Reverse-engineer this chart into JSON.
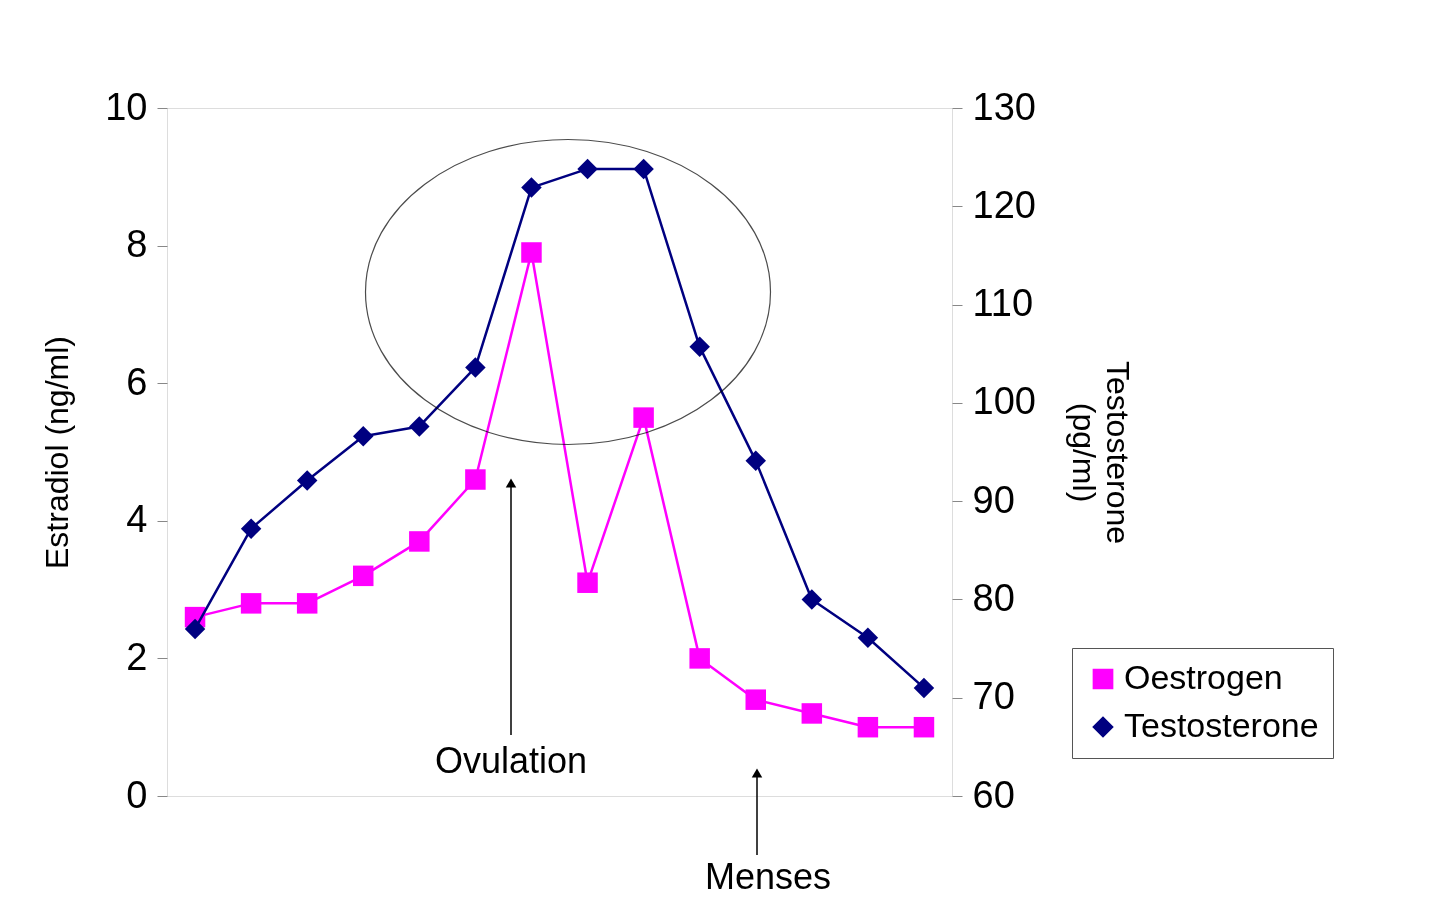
{
  "chart_data": {
    "type": "line",
    "categories": [
      null,
      null,
      null,
      null,
      null,
      null,
      null,
      null,
      null,
      null,
      null,
      null,
      null,
      null
    ],
    "ylabel": "Estradiol (ng/ml)",
    "y2label": "Testosterone (pg/ml)",
    "ylim": [
      0,
      10
    ],
    "yticks": [
      0,
      2,
      4,
      6,
      8,
      10
    ],
    "y2lim": [
      60,
      130
    ],
    "y2ticks": [
      60,
      70,
      80,
      90,
      100,
      110,
      120,
      130
    ],
    "series": [
      {
        "name": "Oestrogen",
        "color": "#ff00ff",
        "marker": "square",
        "values": [
          2.6,
          2.8,
          2.8,
          3.2,
          3.7,
          4.6,
          7.9,
          3.1,
          5.5,
          2.0,
          1.4,
          1.2,
          1.0,
          1.0
        ]
      },
      {
        "name": "Testosterone",
        "color": "#000080",
        "marker": "diamond",
        "axis": "y2",
        "values": [
          77,
          87.2,
          92.1,
          96.6,
          97.6,
          103.6,
          121.9,
          123.8,
          123.8,
          105.7,
          94.1,
          80,
          76.1,
          71
        ]
      }
    ],
    "annotations": [
      "Ovulation",
      "Menses"
    ],
    "legend": "right",
    "grid": false,
    "line_style": "solid"
  }
}
